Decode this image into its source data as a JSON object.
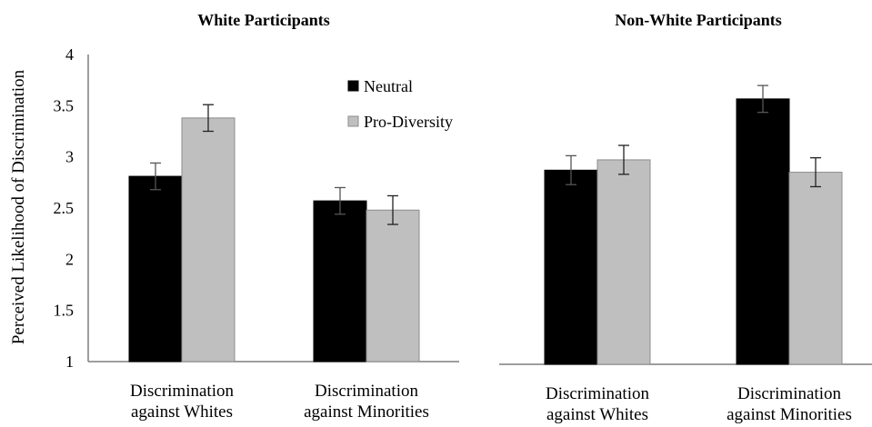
{
  "chart_data": [
    {
      "type": "bar",
      "title": "White Participants",
      "ylabel": "Perceived Likelihood of Discrimination",
      "xlabel": "",
      "ylim": [
        1,
        4
      ],
      "yticks": [
        "1",
        "1.5",
        "2",
        "2.5",
        "3",
        "3.5",
        "4"
      ],
      "categories": [
        [
          "Discrimination",
          "against Whites"
        ],
        [
          "Discrimination",
          "against Minorities"
        ]
      ],
      "series": [
        {
          "name": "Neutral",
          "color": "#000000",
          "values": [
            2.81,
            2.57
          ],
          "error": [
            0.13,
            0.13
          ]
        },
        {
          "name": "Pro-Diversity",
          "color": "#bfbfbf",
          "values": [
            3.38,
            2.48
          ],
          "error": [
            0.13,
            0.14
          ]
        }
      ],
      "legend": "top-right",
      "grid": false
    },
    {
      "type": "bar",
      "title": "Non-White Participants",
      "ylabel": "",
      "xlabel": "",
      "ylim": [
        1,
        4
      ],
      "categories": [
        [
          "Discrimination",
          "against Whites"
        ],
        [
          "Discrimination",
          "against Minorities"
        ]
      ],
      "series": [
        {
          "name": "Neutral",
          "color": "#000000",
          "values": [
            2.88,
            3.57
          ],
          "error": [
            0.14,
            0.13
          ]
        },
        {
          "name": "Pro-Diversity",
          "color": "#bfbfbf",
          "values": [
            2.98,
            2.86
          ],
          "error": [
            0.14,
            0.14
          ]
        }
      ],
      "legend": "none",
      "grid": false
    }
  ]
}
